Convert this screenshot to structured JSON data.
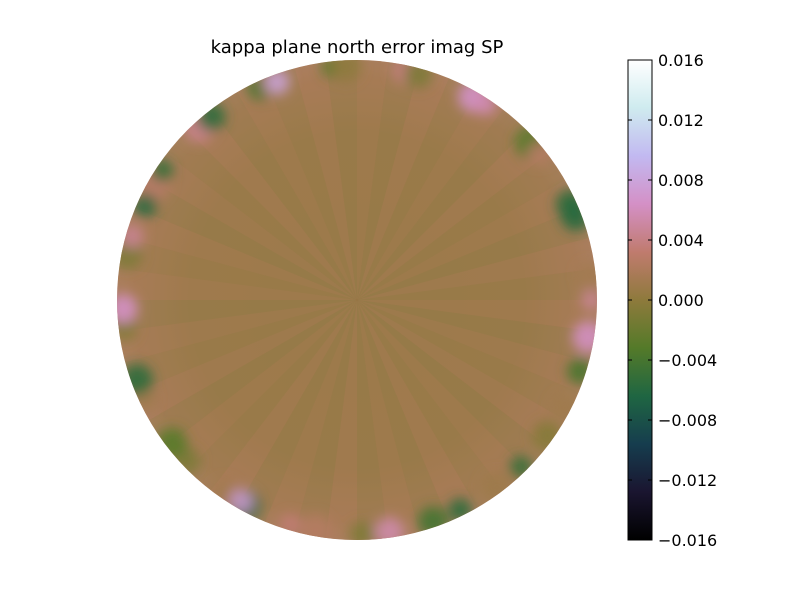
{
  "chart_data": {
    "type": "heatmap",
    "title": "kappa plane north error imag SP",
    "plot_shape": "disk",
    "colormap": "cubehelix",
    "colorbar": {
      "range": [
        -0.016,
        0.016
      ],
      "ticks": [
        0.016,
        0.012,
        0.008,
        0.004,
        0.0,
        -0.004,
        -0.008,
        -0.012,
        -0.016
      ],
      "tick_labels": [
        "0.016",
        "0.012",
        "0.008",
        "0.004",
        "0.000",
        "−0.004",
        "−0.008",
        "−0.012",
        "−0.016"
      ],
      "placement": "right"
    },
    "field_summary": {
      "interior_value": 0.0,
      "edge_max": 0.008,
      "edge_min": -0.006
    },
    "grid": false,
    "colors": {
      "background": "#ffffff",
      "cubehelix_stops": [
        "#000000",
        "#1a1530",
        "#163d4e",
        "#1f6642",
        "#547a29",
        "#8e7a3c",
        "#c07b6e",
        "#d490c6",
        "#c2b9f1",
        "#cfebef",
        "#ffffff"
      ]
    }
  }
}
